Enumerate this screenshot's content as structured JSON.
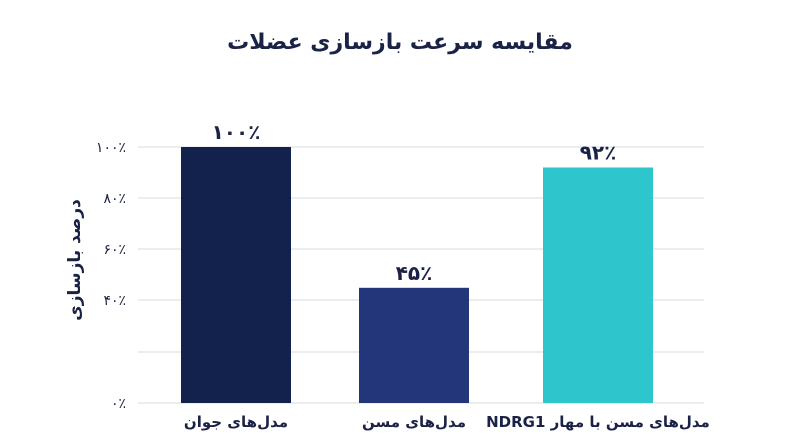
{
  "chart_data": {
    "type": "bar",
    "title": "مقایسه سرعت بازسازی عضلات",
    "ylabel": "درصد بازسازی",
    "xlabel": "",
    "categories": [
      "مدل‌های جوان",
      "مدل‌های مسن",
      "مدل‌های مسن با مهار NDRG1"
    ],
    "values": [
      100,
      45,
      92
    ],
    "value_labels": [
      "۱۰۰٪",
      "۴۵٪",
      "۹۲٪"
    ],
    "yticks": [
      0,
      40,
      60,
      80,
      100
    ],
    "ytick_labels": [
      "۰٪",
      "۴۰٪",
      "۶۰٪",
      "۸۰٪",
      "۱۰۰٪"
    ],
    "ylim": [
      0,
      100
    ],
    "grid": true,
    "colors": [
      "#13214d",
      "#24367a",
      "#2cc6cc"
    ]
  }
}
